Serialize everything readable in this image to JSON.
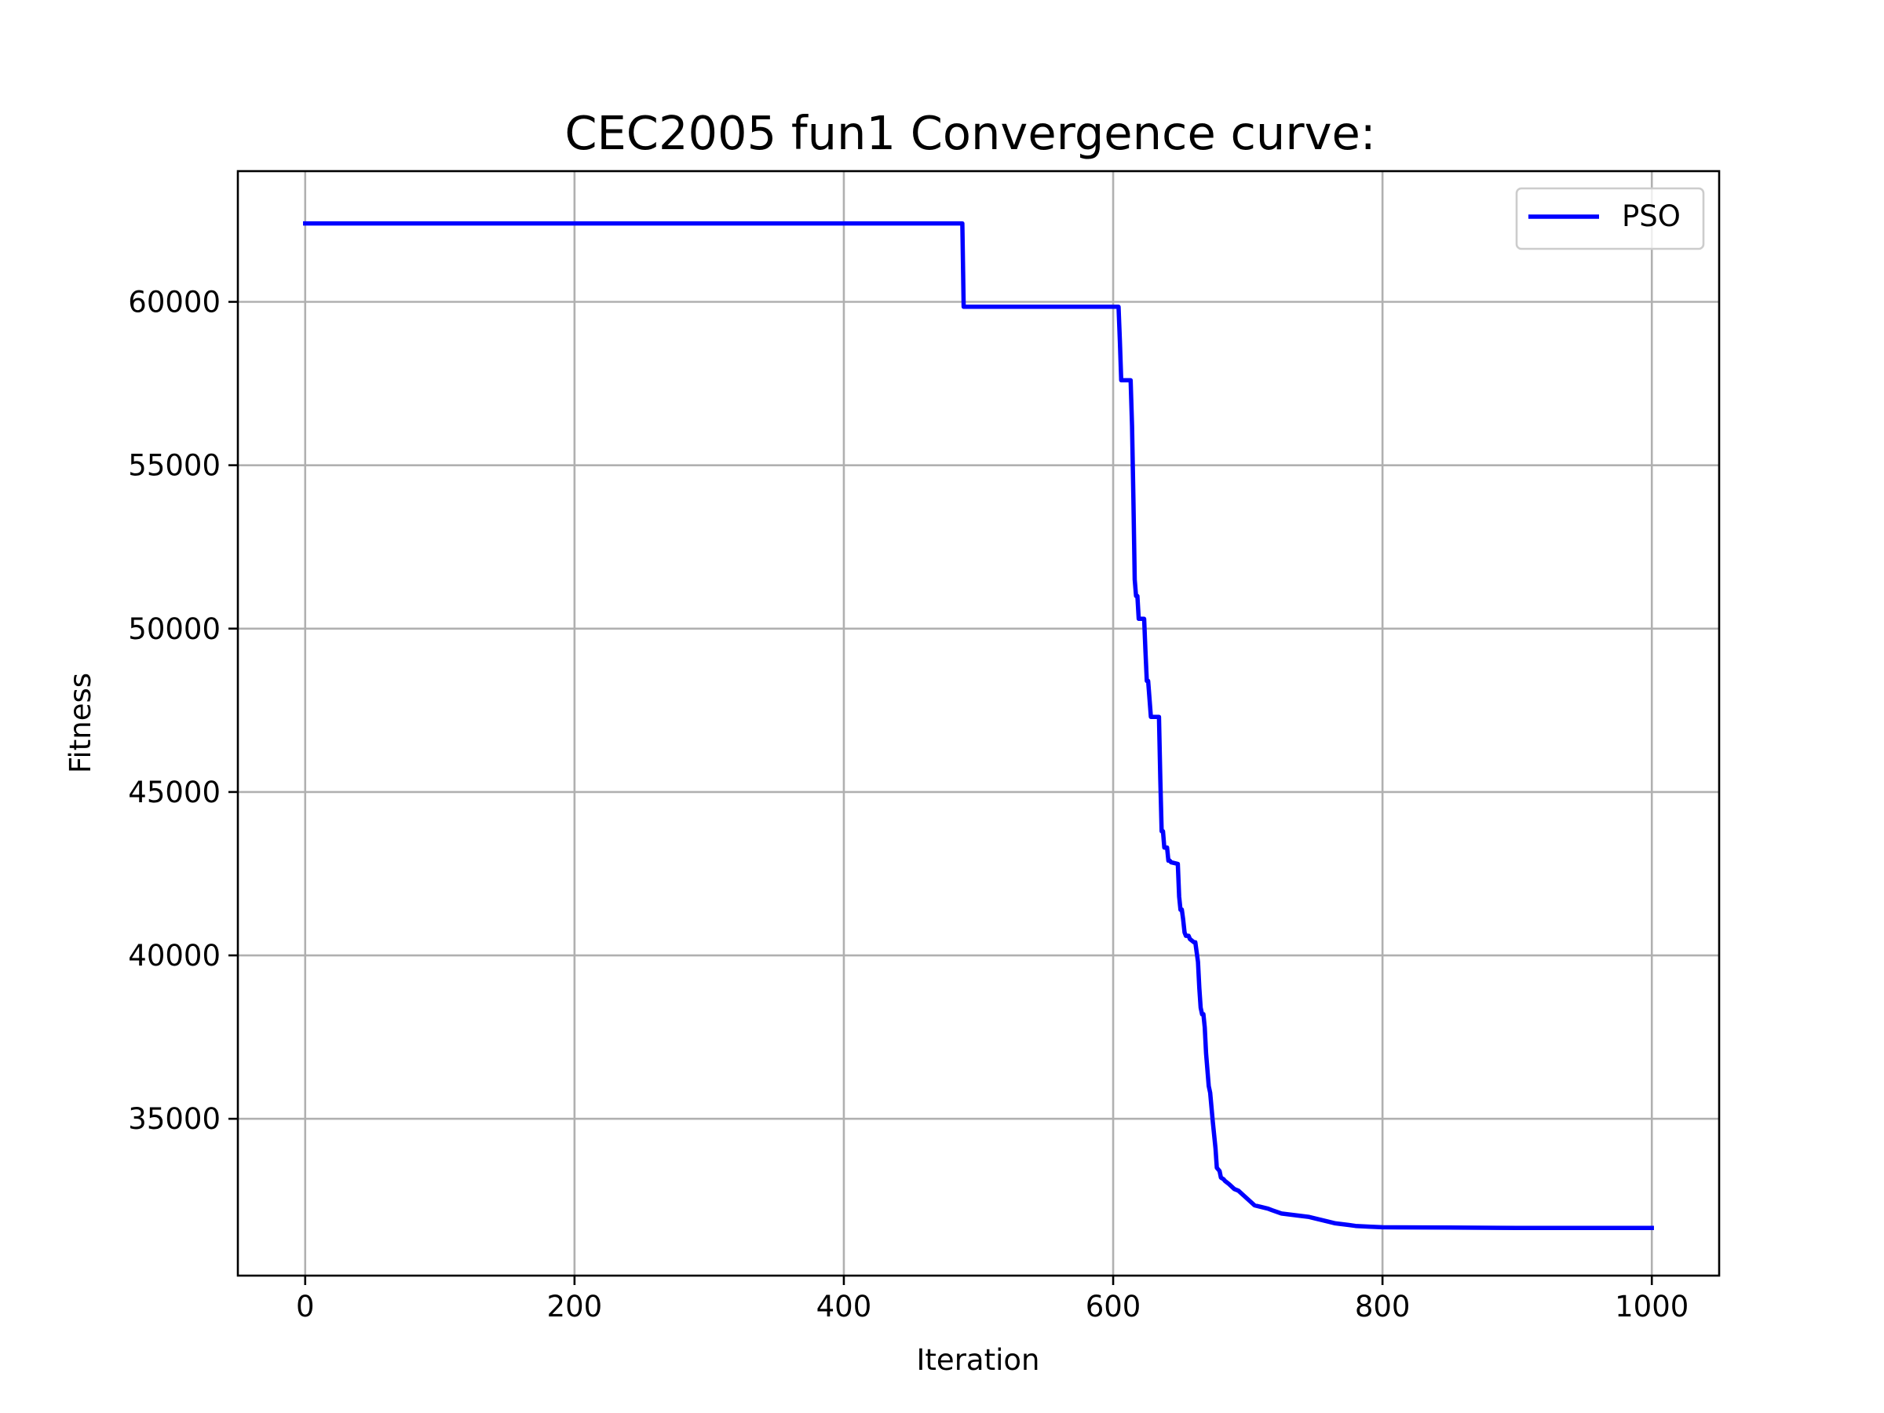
{
  "chart_data": {
    "type": "line",
    "title": "CEC2005 fun1 Convergence curve:",
    "xlabel": "Iteration",
    "ylabel": "Fitness",
    "xlim": [
      -50,
      1050
    ],
    "ylim": [
      30200,
      64000
    ],
    "xticks": [
      0,
      200,
      400,
      600,
      800,
      1000
    ],
    "yticks": [
      35000,
      40000,
      45000,
      50000,
      55000,
      60000
    ],
    "grid": true,
    "legend_position": "top-right",
    "series": [
      {
        "name": "PSO",
        "color": "#0000ff",
        "x": [
          0,
          488,
          489,
          604,
          605,
          606,
          613,
          614,
          615,
          616,
          617,
          618,
          619,
          623,
          624,
          625,
          626,
          628,
          629,
          634,
          635,
          636,
          637,
          638,
          639,
          640,
          641,
          642,
          643,
          648,
          649,
          650,
          651,
          652,
          653,
          654,
          656,
          657,
          660,
          661,
          663,
          664,
          665,
          666,
          667,
          668,
          669,
          671,
          672,
          674,
          676,
          677,
          679,
          680,
          682,
          683,
          686,
          690,
          693,
          697,
          705,
          710,
          715,
          718,
          725,
          735,
          745,
          750,
          760,
          765,
          775,
          780,
          790,
          800,
          850,
          900,
          1000
        ],
        "y": [
          62400,
          62400,
          59850,
          59850,
          58800,
          57600,
          57600,
          56200,
          54000,
          51500,
          51000,
          51000,
          50300,
          50300,
          49300,
          48400,
          48400,
          47300,
          47300,
          47300,
          45400,
          43800,
          43800,
          43300,
          43300,
          43300,
          42900,
          42900,
          42850,
          42800,
          41800,
          41400,
          41400,
          41100,
          40700,
          40600,
          40600,
          40500,
          40400,
          40400,
          39800,
          39000,
          38400,
          38200,
          38200,
          37800,
          37000,
          36000,
          35800,
          34900,
          34100,
          33500,
          33400,
          33200,
          33150,
          33100,
          33000,
          32850,
          32800,
          32650,
          32350,
          32300,
          32250,
          32200,
          32100,
          32050,
          32000,
          31950,
          31850,
          31800,
          31750,
          31720,
          31700,
          31680,
          31670,
          31660,
          31660
        ]
      }
    ]
  }
}
